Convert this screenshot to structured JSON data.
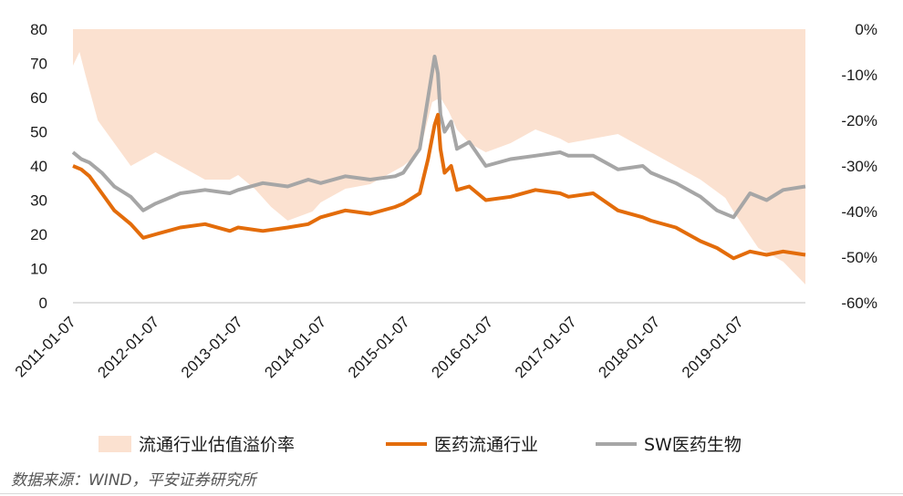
{
  "chart_data": {
    "type": "area+line",
    "title": "",
    "left_axis": {
      "ylim": [
        0,
        80
      ],
      "ticks": [
        "0",
        "10",
        "20",
        "30",
        "40",
        "50",
        "60",
        "70",
        "80"
      ]
    },
    "right_axis": {
      "ylim": [
        -60,
        0
      ],
      "ticks": [
        "-60%",
        "-50%",
        "-40%",
        "-30%",
        "-20%",
        "-10%",
        "0%"
      ]
    },
    "x_ticks": [
      "2011-01-07",
      "2012-01-07",
      "2013-01-07",
      "2014-01-07",
      "2015-01-07",
      "2016-01-07",
      "2017-01-07",
      "2018-01-07",
      "2019-01-07"
    ],
    "x_range": [
      2011.0,
      2019.87
    ],
    "series": [
      {
        "name": "流通行业估值溢价率",
        "kind": "area",
        "axis": "right",
        "color": "#fbe1d0",
        "x": [
          2011.0,
          2011.08,
          2011.15,
          2011.3,
          2011.5,
          2011.7,
          2011.9,
          2012.0,
          2012.3,
          2012.6,
          2012.9,
          2013.0,
          2013.2,
          2013.4,
          2013.6,
          2013.9,
          2014.0,
          2014.3,
          2014.6,
          2014.9,
          2015.0,
          2015.2,
          2015.35,
          2015.45,
          2015.55,
          2015.65,
          2015.8,
          2016.0,
          2016.3,
          2016.6,
          2016.9,
          2017.0,
          2017.3,
          2017.6,
          2017.9,
          2018.0,
          2018.3,
          2018.6,
          2018.9,
          2019.0,
          2019.3,
          2019.6,
          2019.87
        ],
        "values": [
          -8,
          -5,
          -10,
          -20,
          -25,
          -30,
          -28,
          -27,
          -30,
          -33,
          -33,
          -32,
          -35,
          -39,
          -42,
          -40,
          -38,
          -35,
          -34,
          -31,
          -30,
          -27,
          -16,
          -15,
          -18,
          -22,
          -25,
          -27,
          -25,
          -22,
          -24,
          -25,
          -24,
          -23,
          -26,
          -27,
          -30,
          -33,
          -37,
          -40,
          -48,
          -51,
          -56
        ]
      },
      {
        "name": "医药流通行业",
        "kind": "line",
        "axis": "left",
        "color": "#e36c0a",
        "x": [
          2011.0,
          2011.1,
          2011.2,
          2011.35,
          2011.5,
          2011.7,
          2011.85,
          2012.0,
          2012.3,
          2012.6,
          2012.9,
          2013.0,
          2013.3,
          2013.6,
          2013.85,
          2014.0,
          2014.3,
          2014.6,
          2014.9,
          2015.0,
          2015.2,
          2015.3,
          2015.38,
          2015.42,
          2015.45,
          2015.5,
          2015.58,
          2015.65,
          2015.8,
          2016.0,
          2016.3,
          2016.6,
          2016.9,
          2017.0,
          2017.3,
          2017.6,
          2017.9,
          2018.0,
          2018.3,
          2018.6,
          2018.8,
          2019.0,
          2019.2,
          2019.4,
          2019.6,
          2019.87
        ],
        "values": [
          40,
          39,
          37,
          32,
          27,
          23,
          19,
          20,
          22,
          23,
          21,
          22,
          21,
          22,
          23,
          25,
          27,
          26,
          28,
          29,
          32,
          42,
          52,
          55,
          45,
          38,
          40,
          33,
          34,
          30,
          31,
          33,
          32,
          31,
          32,
          27,
          25,
          24,
          22,
          18,
          16,
          13,
          15,
          14,
          15,
          14
        ]
      },
      {
        "name": "SW医药生物",
        "kind": "line",
        "axis": "left",
        "color": "#a6a6a6",
        "x": [
          2011.0,
          2011.1,
          2011.2,
          2011.35,
          2011.5,
          2011.7,
          2011.85,
          2012.0,
          2012.3,
          2012.6,
          2012.9,
          2013.0,
          2013.3,
          2013.6,
          2013.85,
          2014.0,
          2014.3,
          2014.6,
          2014.9,
          2015.0,
          2015.2,
          2015.3,
          2015.38,
          2015.42,
          2015.45,
          2015.5,
          2015.58,
          2015.65,
          2015.8,
          2016.0,
          2016.3,
          2016.6,
          2016.9,
          2017.0,
          2017.3,
          2017.6,
          2017.9,
          2018.0,
          2018.3,
          2018.6,
          2018.8,
          2019.0,
          2019.2,
          2019.4,
          2019.6,
          2019.87
        ],
        "values": [
          44,
          42,
          41,
          38,
          34,
          31,
          27,
          29,
          32,
          33,
          32,
          33,
          35,
          34,
          36,
          35,
          37,
          36,
          37,
          38,
          45,
          60,
          72,
          67,
          55,
          50,
          53,
          45,
          47,
          40,
          42,
          43,
          44,
          43,
          43,
          39,
          40,
          38,
          35,
          31,
          27,
          25,
          32,
          30,
          33,
          34
        ]
      }
    ],
    "legend": {
      "position": "bottom"
    }
  },
  "source": "数据来源：WIND，平安证券研究所"
}
